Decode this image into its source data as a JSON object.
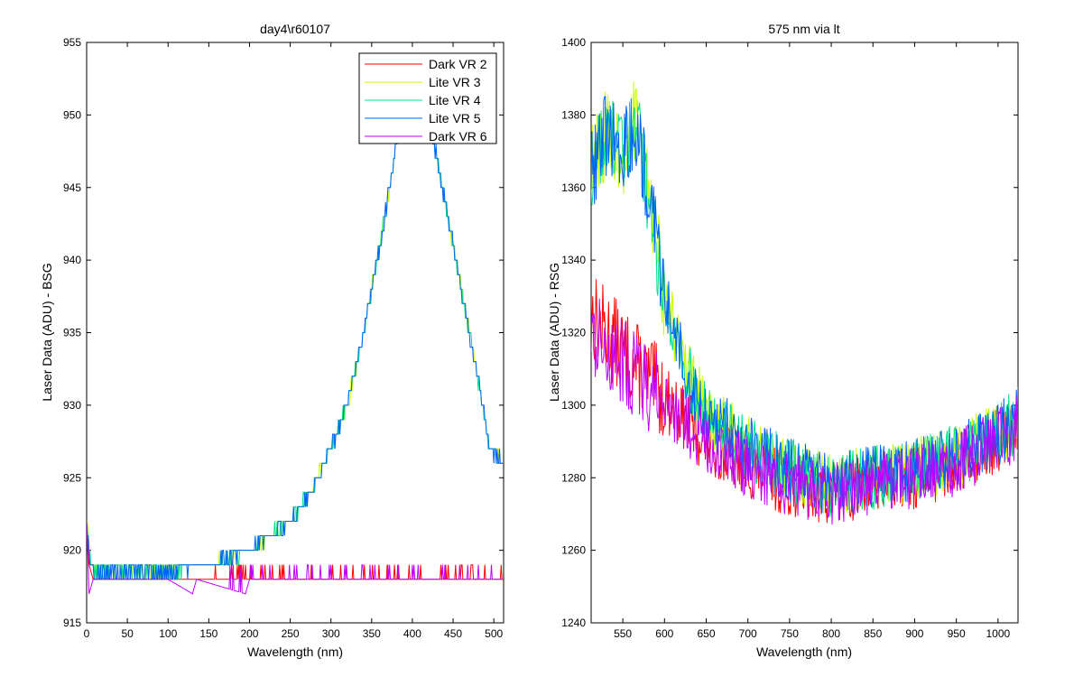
{
  "chart_data": [
    {
      "type": "line",
      "title": "day4\\r60107",
      "xlabel": "Wavelength (nm)",
      "ylabel": "Laser Data (ADU) - BSG",
      "xlim": [
        0,
        512
      ],
      "ylim": [
        915,
        955
      ],
      "xticks": [
        0,
        50,
        100,
        150,
        200,
        250,
        300,
        350,
        400,
        450,
        500
      ],
      "yticks": [
        915,
        920,
        925,
        930,
        935,
        940,
        945,
        950,
        955
      ],
      "legend_position": "top-right",
      "series": [
        {
          "name": "Dark VR 2",
          "color": "#ff0000",
          "kind": "dark",
          "base": 918,
          "points": [
            [
              0,
              922
            ],
            [
              3,
              919
            ],
            [
              8,
              918
            ],
            [
              50,
              918
            ],
            [
              100,
              918
            ],
            [
              150,
              918
            ],
            [
              200,
              918
            ],
            [
              250,
              918
            ],
            [
              300,
              918
            ],
            [
              350,
              918
            ],
            [
              400,
              918
            ],
            [
              450,
              918
            ],
            [
              500,
              918
            ],
            [
              512,
              918
            ]
          ]
        },
        {
          "name": "Lite VR 3",
          "color": "#c8ff00",
          "kind": "lite",
          "points": [
            [
              0,
              922
            ],
            [
              5,
              919
            ],
            [
              10,
              918.5
            ],
            [
              50,
              918.5
            ],
            [
              100,
              918.5
            ],
            [
              150,
              919
            ],
            [
              175,
              919.5
            ],
            [
              200,
              920
            ],
            [
              225,
              921
            ],
            [
              250,
              922
            ],
            [
              275,
              924
            ],
            [
              300,
              927
            ],
            [
              320,
              930
            ],
            [
              340,
              935
            ],
            [
              360,
              941
            ],
            [
              375,
              946
            ],
            [
              385,
              950
            ],
            [
              395,
              953
            ],
            [
              405,
              954
            ],
            [
              420,
              950
            ],
            [
              440,
              944
            ],
            [
              460,
              938
            ],
            [
              480,
              932
            ],
            [
              495,
              927
            ],
            [
              512,
              926
            ]
          ]
        },
        {
          "name": "Lite VR 4",
          "color": "#00e08a",
          "kind": "lite",
          "points": [
            [
              0,
              922
            ],
            [
              5,
              919
            ],
            [
              10,
              918.5
            ],
            [
              50,
              918.5
            ],
            [
              100,
              918.5
            ],
            [
              150,
              919
            ],
            [
              175,
              919.5
            ],
            [
              200,
              920
            ],
            [
              225,
              921
            ],
            [
              250,
              922
            ],
            [
              275,
              924
            ],
            [
              300,
              927
            ],
            [
              320,
              930
            ],
            [
              340,
              935
            ],
            [
              360,
              941
            ],
            [
              375,
              946
            ],
            [
              385,
              950
            ],
            [
              395,
              953
            ],
            [
              405,
              954
            ],
            [
              420,
              950
            ],
            [
              440,
              944
            ],
            [
              460,
              938
            ],
            [
              480,
              932
            ],
            [
              495,
              927
            ],
            [
              512,
              926
            ]
          ]
        },
        {
          "name": "Lite VR 5",
          "color": "#0060ff",
          "kind": "lite",
          "points": [
            [
              0,
              922
            ],
            [
              5,
              919
            ],
            [
              10,
              918.5
            ],
            [
              50,
              918.5
            ],
            [
              100,
              918.5
            ],
            [
              150,
              919
            ],
            [
              175,
              919.5
            ],
            [
              200,
              920
            ],
            [
              225,
              921
            ],
            [
              250,
              922
            ],
            [
              275,
              924
            ],
            [
              300,
              927
            ],
            [
              320,
              930
            ],
            [
              340,
              935
            ],
            [
              360,
              941
            ],
            [
              375,
              946
            ],
            [
              385,
              950
            ],
            [
              395,
              953
            ],
            [
              405,
              954
            ],
            [
              420,
              950
            ],
            [
              440,
              944
            ],
            [
              460,
              938
            ],
            [
              480,
              932
            ],
            [
              495,
              927
            ],
            [
              512,
              926
            ]
          ]
        },
        {
          "name": "Dark VR 6",
          "color": "#c000ff",
          "kind": "dark",
          "base": 918,
          "points": [
            [
              0,
              922
            ],
            [
              3,
              917
            ],
            [
              8,
              918
            ],
            [
              50,
              918
            ],
            [
              100,
              918
            ],
            [
              130,
              917
            ],
            [
              135,
              918
            ],
            [
              195,
              917
            ],
            [
              200,
              918
            ],
            [
              250,
              918
            ],
            [
              300,
              918
            ],
            [
              350,
              918
            ],
            [
              400,
              918
            ],
            [
              450,
              918
            ],
            [
              500,
              918
            ],
            [
              512,
              918
            ]
          ]
        }
      ]
    },
    {
      "type": "line",
      "title": "575 nm via lt",
      "xlabel": "Wavelength (nm)",
      "ylabel": "Laser Data (ADU) - RSG",
      "xlim": [
        512,
        1024
      ],
      "ylim": [
        1240,
        1400
      ],
      "xticks": [
        550,
        600,
        650,
        700,
        750,
        800,
        850,
        900,
        950,
        1000
      ],
      "yticks": [
        1240,
        1260,
        1280,
        1300,
        1320,
        1340,
        1360,
        1380,
        1400
      ],
      "series": [
        {
          "name": "Dark VR 2",
          "color": "#ff0000",
          "kind": "dark",
          "points": [
            [
              512,
              1325
            ],
            [
              550,
              1315
            ],
            [
              600,
              1302
            ],
            [
              650,
              1290
            ],
            [
              700,
              1283
            ],
            [
              750,
              1278
            ],
            [
              800,
              1276
            ],
            [
              850,
              1278
            ],
            [
              900,
              1280
            ],
            [
              950,
              1284
            ],
            [
              1000,
              1290
            ],
            [
              1024,
              1294
            ]
          ]
        },
        {
          "name": "Lite VR 3",
          "color": "#c8ff00",
          "kind": "lite",
          "points": [
            [
              512,
              1365
            ],
            [
              530,
              1375
            ],
            [
              550,
              1370
            ],
            [
              565,
              1378
            ],
            [
              580,
              1360
            ],
            [
              600,
              1330
            ],
            [
              625,
              1310
            ],
            [
              650,
              1298
            ],
            [
              700,
              1288
            ],
            [
              750,
              1282
            ],
            [
              800,
              1278
            ],
            [
              850,
              1280
            ],
            [
              900,
              1282
            ],
            [
              950,
              1286
            ],
            [
              1000,
              1292
            ],
            [
              1024,
              1296
            ]
          ]
        },
        {
          "name": "Lite VR 4",
          "color": "#00e08a",
          "kind": "lite",
          "points": [
            [
              512,
              1365
            ],
            [
              530,
              1375
            ],
            [
              550,
              1370
            ],
            [
              565,
              1378
            ],
            [
              580,
              1360
            ],
            [
              600,
              1330
            ],
            [
              625,
              1310
            ],
            [
              650,
              1298
            ],
            [
              700,
              1288
            ],
            [
              750,
              1282
            ],
            [
              800,
              1278
            ],
            [
              850,
              1280
            ],
            [
              900,
              1282
            ],
            [
              950,
              1286
            ],
            [
              1000,
              1292
            ],
            [
              1024,
              1296
            ]
          ]
        },
        {
          "name": "Lite VR 5",
          "color": "#0060ff",
          "kind": "lite",
          "points": [
            [
              512,
              1365
            ],
            [
              530,
              1375
            ],
            [
              550,
              1370
            ],
            [
              565,
              1378
            ],
            [
              580,
              1360
            ],
            [
              600,
              1330
            ],
            [
              625,
              1310
            ],
            [
              650,
              1298
            ],
            [
              700,
              1288
            ],
            [
              750,
              1282
            ],
            [
              800,
              1278
            ],
            [
              850,
              1280
            ],
            [
              900,
              1282
            ],
            [
              950,
              1286
            ],
            [
              1000,
              1292
            ],
            [
              1024,
              1296
            ]
          ]
        },
        {
          "name": "Dark VR 6",
          "color": "#c000ff",
          "kind": "dark",
          "points": [
            [
              512,
              1320
            ],
            [
              550,
              1312
            ],
            [
              600,
              1300
            ],
            [
              650,
              1290
            ],
            [
              700,
              1283
            ],
            [
              750,
              1278
            ],
            [
              800,
              1276
            ],
            [
              850,
              1278
            ],
            [
              900,
              1280
            ],
            [
              950,
              1284
            ],
            [
              1000,
              1290
            ],
            [
              1024,
              1294
            ]
          ]
        }
      ]
    }
  ]
}
